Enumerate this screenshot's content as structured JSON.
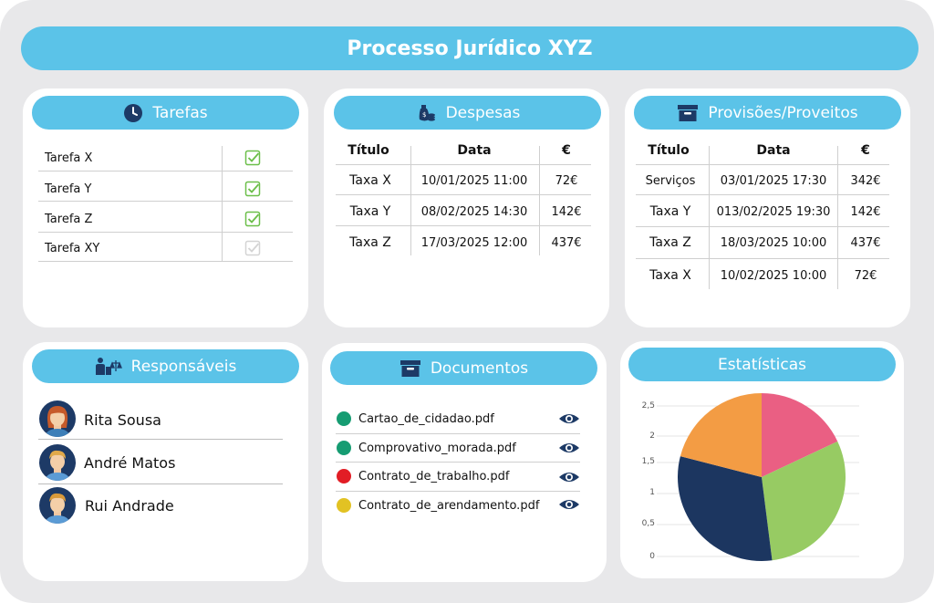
{
  "title": "Processo Jurídico XYZ",
  "colors": {
    "accent": "#5bc3e8",
    "navy": "#1d3a66",
    "check": "#6cbf4a"
  },
  "tarefas": {
    "heading": "Tarefas",
    "icon": "clock-icon",
    "items": [
      {
        "label": "Tarefa X",
        "done": true
      },
      {
        "label": "Tarefa Y",
        "done": true
      },
      {
        "label": "Tarefa Z",
        "done": true
      },
      {
        "label": "Tarefa XY",
        "done": false
      }
    ]
  },
  "despesas": {
    "heading": "Despesas",
    "icon": "money-bag-icon",
    "columns": [
      "Título",
      "Data",
      "€"
    ],
    "rows": [
      [
        "Taxa X",
        "10/01/2025  11:00",
        "72€"
      ],
      [
        "Taxa Y",
        "08/02/2025  14:30",
        "142€"
      ],
      [
        "Taxa Z",
        "17/03/2025  12:00",
        "437€"
      ]
    ]
  },
  "provisoes": {
    "heading": "Provisões/Proveitos",
    "icon": "archive-box-icon",
    "columns": [
      "Título",
      "Data",
      "€"
    ],
    "rows": [
      [
        "Serviços",
        "03/01/2025  17:30",
        "342€"
      ],
      [
        "Taxa Y",
        "013/02/2025  19:30",
        "142€"
      ],
      [
        "Taxa Z",
        "18/03/2025  10:00",
        "437€"
      ],
      [
        "Taxa X",
        "10/02/2025  10:00",
        "72€"
      ]
    ]
  },
  "responsaveis": {
    "heading": "Responsáveis",
    "icon": "people-scale-icon",
    "people": [
      {
        "name": "Rita Sousa"
      },
      {
        "name": "André Matos"
      },
      {
        "name": "Rui Andrade"
      }
    ]
  },
  "documentos": {
    "heading": "Documentos",
    "icon": "archive-box-icon",
    "files": [
      {
        "name": "Cartao_de_cidadao.pdf",
        "status_color": "#169c72"
      },
      {
        "name": "Comprovativo_morada.pdf",
        "status_color": "#169c72"
      },
      {
        "name": "Contrato_de_trabalho.pdf",
        "status_color": "#e21d25"
      },
      {
        "name": "Contrato_de_arendamento.pdf",
        "status_color": "#e2c223"
      }
    ]
  },
  "estatisticas": {
    "heading": "Estatísticas"
  },
  "chart_data": {
    "type": "pie",
    "yticks": [
      "0",
      "0,5",
      "1",
      "1,5",
      "2",
      "2,5"
    ],
    "slices": [
      {
        "value": 18,
        "color": "#ea5f83"
      },
      {
        "value": 30,
        "color": "#97cb63"
      },
      {
        "value": 31,
        "color": "#1c3660"
      },
      {
        "value": 21,
        "color": "#f39c44"
      }
    ]
  }
}
